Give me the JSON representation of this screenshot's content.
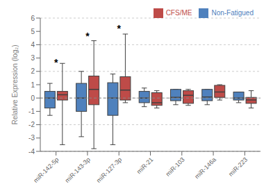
{
  "chart_data": {
    "type": "box",
    "ylabel": "Relative Expression (log₂)",
    "categories": [
      "miR-142-5p",
      "miR-143-3p",
      "miR-127-3p",
      "miR-21",
      "miR-103",
      "miR-146a",
      "miR-223"
    ],
    "series": [
      {
        "name": "Non-Fatigued",
        "color": "#4F81BD",
        "boxes": [
          {
            "whislo": -1.3,
            "q1": -0.75,
            "med": 0.0,
            "q3": 0.5,
            "whishi": 1.1
          },
          {
            "whislo": -2.9,
            "q1": -1.0,
            "med": 0.0,
            "q3": 1.1,
            "whishi": 2.0
          },
          {
            "whislo": -3.5,
            "q1": -1.3,
            "med": 0.0,
            "q3": 1.15,
            "whishi": 1.8
          },
          {
            "whislo": -0.65,
            "q1": -0.35,
            "med": 0.0,
            "q3": 0.5,
            "whishi": 0.75
          },
          {
            "whislo": -0.5,
            "q1": -0.2,
            "med": 0.05,
            "q3": 0.65,
            "whishi": 0.65
          },
          {
            "whislo": -0.5,
            "q1": -0.2,
            "med": 0.08,
            "q3": 0.65,
            "whishi": 0.65
          },
          {
            "whislo": -0.35,
            "q1": -0.15,
            "med": 0.0,
            "q3": 0.45,
            "whishi": 0.45
          }
        ]
      },
      {
        "name": "CFS/ME",
        "color": "#BE4B48",
        "boxes": [
          {
            "whislo": -3.5,
            "q1": -0.15,
            "med": 0.25,
            "q3": 0.5,
            "whishi": 2.6
          },
          {
            "whislo": -3.8,
            "q1": -0.5,
            "med": 0.65,
            "q3": 1.65,
            "whishi": 4.3
          },
          {
            "whislo": -0.35,
            "q1": -0.15,
            "med": 0.6,
            "q3": 1.6,
            "whishi": 4.8
          },
          {
            "whislo": -0.75,
            "q1": -0.55,
            "med": -0.35,
            "q3": 0.4,
            "whishi": 0.55
          },
          {
            "whislo": -0.55,
            "q1": -0.4,
            "med": 0.2,
            "q3": 0.55,
            "whishi": 0.65
          },
          {
            "whislo": -0.15,
            "q1": 0.05,
            "med": 0.45,
            "q3": 0.95,
            "whishi": 1.0
          },
          {
            "whislo": -0.75,
            "q1": -0.4,
            "med": -0.15,
            "q3": 0.05,
            "whishi": 0.55
          }
        ]
      }
    ],
    "annotations": [
      {
        "category": "miR-142-5p",
        "y": 2.8,
        "text": "*"
      },
      {
        "category": "miR-143-3p",
        "y": 4.8,
        "text": "*"
      },
      {
        "category": "miR-127-3p",
        "y": 5.4,
        "text": "*"
      }
    ],
    "hline": 0,
    "ylim": [
      -4,
      6
    ],
    "yticks": [
      -4,
      -3,
      -2,
      -1,
      0,
      1,
      2,
      3,
      4,
      5,
      6
    ],
    "grid": true,
    "legend": "upper right"
  }
}
